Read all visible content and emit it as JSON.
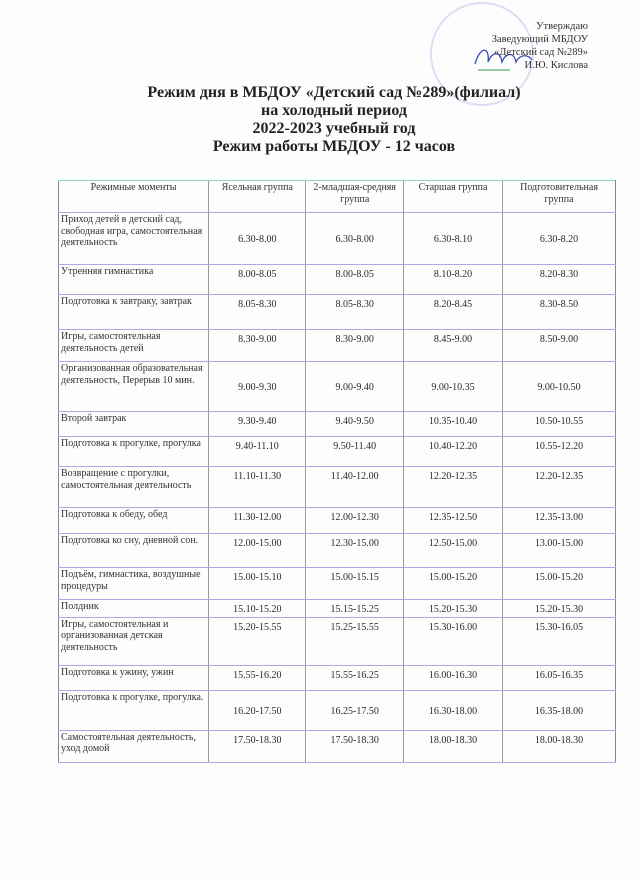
{
  "approval": {
    "line1": "Утверждаю",
    "line2": "Заведующий МБДОУ",
    "line3": "«Детский сад №289»",
    "line4": "И.Ю. Кислова"
  },
  "titles": {
    "t1": "Режим дня в МБДОУ «Детский сад №289»(филиал)",
    "t2": "на холодный период",
    "t3": "2022-2023 учебный год",
    "t4": "Режим работы МБДОУ  - 12 часов"
  },
  "table": {
    "headers": [
      "Режимные моменты",
      "Ясельная группа",
      "2-младшая-средняя группа",
      "Старшая группа",
      "Подготовительная группа"
    ],
    "rows": [
      [
        "Приход детей в детский сад, свободная игра, самостоятельная деятельность",
        "6.30-8.00",
        "6.30-8.00",
        "6.30-8.10",
        "6.30-8.20"
      ],
      [
        "Утренняя гимнастика",
        "8.00-8.05",
        "8.00-8.05",
        "8.10-8.20",
        "8.20-8.30"
      ],
      [
        "Подготовка к завтраку, завтрак",
        "8.05-8.30",
        "8.05-8.30",
        "8.20-8.45",
        "8.30-8.50"
      ],
      [
        "Игры, самостоятельная деятельность детей",
        "8.30-9.00",
        "8.30-9.00",
        "8.45-9.00",
        "8.50-9.00"
      ],
      [
        "Организованная образовательная деятельность, Перерыв 10 мин.",
        "9.00-9.30",
        "9.00-9.40",
        "9.00-10.35",
        "9.00-10.50"
      ],
      [
        "Второй завтрак",
        "9.30-9.40",
        "9.40-9.50",
        "10.35-10.40",
        "10.50-10.55"
      ],
      [
        "Подготовка к прогулке, прогулка",
        "9.40-11.10",
        "9.50-11.40",
        "10.40-12.20",
        "10.55-12.20"
      ],
      [
        "Возвращение с прогулки, самостоятельная деятельность",
        "11.10-11.30",
        "11.40-12.00",
        "12.20-12.35",
        "12.20-12.35"
      ],
      [
        "Подготовка к обеду, обед",
        "11.30-12.00",
        "12.00-12.30",
        "12.35-12.50",
        "12.35-13.00"
      ],
      [
        "Подготовка ко сну, дневной сон.",
        "12.00-15.00",
        "12.30-15.00",
        "12.50-15.00",
        "13.00-15.00"
      ],
      [
        "Подъём, гимнастика, воздушные процедуры",
        "15.00-15.10",
        "15.00-15.15",
        "15.00-15.20",
        "15.00-15.20"
      ],
      [
        "Полдник",
        "15.10-15.20",
        "15.15-15.25",
        "15.20-15.30",
        "15.20-15.30"
      ],
      [
        "Игры, самостоятельная и организованная детская деятельность",
        "15.20-15.55",
        "15.25-15.55",
        "15.30-16.00",
        "15.30-16.05"
      ],
      [
        "Подготовка к ужину, ужин",
        "15.55-16.20",
        "15.55-16.25",
        "16.00-16.30",
        "16.05-16.35"
      ],
      [
        "Подготовка к прогулке, прогулка.",
        "16.20-17.50",
        "16.25-17.50",
        "16.30-18.00",
        "16.35-18.00"
      ],
      [
        "Самостоятельная деятельность, уход домой",
        "17.50-18.30",
        "17.50-18.30",
        "18.00-18.30",
        "18.00-18.30"
      ]
    ]
  }
}
